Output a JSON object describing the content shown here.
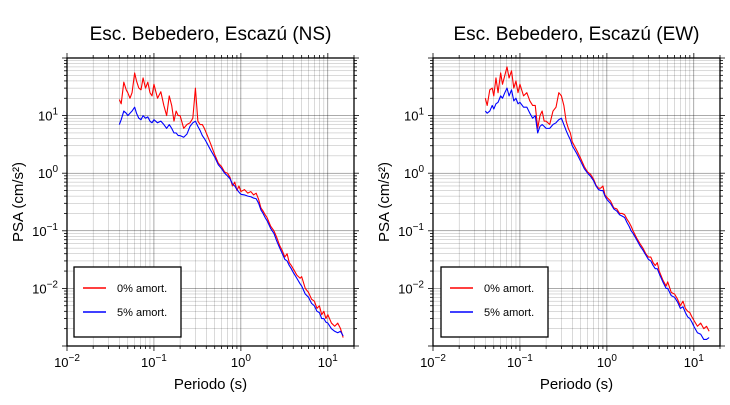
{
  "chart_data": [
    {
      "type": "line",
      "title": "Esc. Bebedero, Escazú (NS)",
      "xlabel": "Periodo (s)",
      "ylabel": "PSA (cm/s²)",
      "xscale": "log",
      "yscale": "log",
      "xlim": [
        0.01,
        20
      ],
      "ylim": [
        0.001,
        100
      ],
      "grid": true,
      "legend_position": "bottom-left",
      "xticks": [
        {
          "value": 0.01,
          "base": "10",
          "exp": "−2"
        },
        {
          "value": 0.1,
          "base": "10",
          "exp": "−1"
        },
        {
          "value": 1,
          "base": "10",
          "exp": "0"
        },
        {
          "value": 10,
          "base": "10",
          "exp": "1"
        }
      ],
      "yticks": [
        {
          "value": 0.01,
          "base": "10",
          "exp": "−2"
        },
        {
          "value": 0.1,
          "base": "10",
          "exp": "−1"
        },
        {
          "value": 1,
          "base": "10",
          "exp": "0"
        },
        {
          "value": 10,
          "base": "10",
          "exp": "1"
        }
      ],
      "series": [
        {
          "name": "0% amort.",
          "color": "#ff0000",
          "x": [
            0.04,
            0.042,
            0.045,
            0.048,
            0.05,
            0.053,
            0.056,
            0.06,
            0.063,
            0.067,
            0.071,
            0.075,
            0.08,
            0.085,
            0.09,
            0.095,
            0.1,
            0.11,
            0.12,
            0.13,
            0.14,
            0.15,
            0.16,
            0.17,
            0.18,
            0.19,
            0.2,
            0.22,
            0.24,
            0.26,
            0.28,
            0.3,
            0.32,
            0.34,
            0.36,
            0.38,
            0.4,
            0.45,
            0.5,
            0.55,
            0.6,
            0.65,
            0.7,
            0.75,
            0.8,
            0.85,
            0.9,
            0.95,
            1.0,
            1.1,
            1.2,
            1.3,
            1.4,
            1.5,
            1.6,
            1.7,
            1.8,
            1.9,
            2.0,
            2.2,
            2.4,
            2.6,
            2.8,
            3.0,
            3.2,
            3.4,
            3.6,
            3.8,
            4.0,
            4.4,
            4.8,
            5.0,
            5.5,
            6.0,
            6.5,
            7.0,
            7.5,
            8.0,
            8.5,
            9.0,
            9.5,
            10.0,
            11.0,
            12.0,
            13.0,
            14.0,
            15.0
          ],
          "y": [
            19,
            16,
            38,
            28,
            25,
            20,
            25,
            55,
            40,
            30,
            28,
            45,
            30,
            38,
            25,
            22,
            35,
            20,
            26,
            15,
            10,
            22,
            15,
            8,
            12,
            10,
            10,
            6,
            7,
            7.5,
            9,
            30,
            8,
            7,
            7,
            6,
            5,
            3.2,
            2.1,
            1.5,
            1.3,
            1.05,
            1.0,
            0.85,
            0.6,
            0.7,
            0.5,
            0.6,
            0.48,
            0.52,
            0.45,
            0.48,
            0.42,
            0.45,
            0.35,
            0.25,
            0.22,
            0.19,
            0.17,
            0.12,
            0.1,
            0.075,
            0.055,
            0.045,
            0.035,
            0.04,
            0.028,
            0.025,
            0.022,
            0.017,
            0.015,
            0.016,
            0.01,
            0.0085,
            0.0065,
            0.006,
            0.0045,
            0.005,
            0.0035,
            0.004,
            0.003,
            0.0035,
            0.0025,
            0.0022,
            0.0025,
            0.002,
            0.0014
          ]
        },
        {
          "name": "5% amort.",
          "color": "#0000ff",
          "x": [
            0.04,
            0.042,
            0.045,
            0.048,
            0.05,
            0.053,
            0.056,
            0.06,
            0.063,
            0.067,
            0.071,
            0.075,
            0.08,
            0.085,
            0.09,
            0.095,
            0.1,
            0.11,
            0.12,
            0.13,
            0.14,
            0.15,
            0.16,
            0.17,
            0.18,
            0.19,
            0.2,
            0.22,
            0.24,
            0.26,
            0.28,
            0.3,
            0.32,
            0.34,
            0.36,
            0.38,
            0.4,
            0.45,
            0.5,
            0.55,
            0.6,
            0.65,
            0.7,
            0.75,
            0.8,
            0.85,
            0.9,
            0.95,
            1.0,
            1.1,
            1.2,
            1.3,
            1.4,
            1.5,
            1.6,
            1.7,
            1.8,
            1.9,
            2.0,
            2.2,
            2.4,
            2.6,
            2.8,
            3.0,
            3.2,
            3.4,
            3.6,
            3.8,
            4.0,
            4.4,
            4.8,
            5.0,
            5.5,
            6.0,
            6.5,
            7.0,
            7.5,
            8.0,
            8.5,
            9.0,
            9.5,
            10.0,
            11.0,
            12.0,
            13.0,
            14.0,
            15.0
          ],
          "y": [
            7,
            8.5,
            12,
            11,
            10,
            11,
            12,
            14,
            11,
            9,
            8.5,
            10,
            9,
            9.5,
            8,
            7.5,
            8.5,
            7.5,
            8,
            7,
            6,
            7,
            6,
            5,
            5,
            4.5,
            4.5,
            4.2,
            4.8,
            6.5,
            7.5,
            8,
            6.5,
            5.5,
            4.5,
            4,
            3.5,
            2.5,
            1.9,
            1.4,
            1.2,
            1.0,
            0.9,
            0.8,
            0.65,
            0.6,
            0.52,
            0.47,
            0.43,
            0.42,
            0.4,
            0.39,
            0.37,
            0.36,
            0.3,
            0.23,
            0.2,
            0.17,
            0.15,
            0.11,
            0.09,
            0.065,
            0.05,
            0.04,
            0.032,
            0.03,
            0.025,
            0.022,
            0.019,
            0.015,
            0.012,
            0.011,
            0.008,
            0.007,
            0.0055,
            0.005,
            0.004,
            0.0038,
            0.003,
            0.003,
            0.0026,
            0.0025,
            0.002,
            0.0018,
            0.0017,
            0.0018,
            0.0015
          ]
        }
      ]
    },
    {
      "type": "line",
      "title": "Esc. Bebedero, Escazú (EW)",
      "xlabel": "Periodo (s)",
      "ylabel": "PSA (cm/s²)",
      "xscale": "log",
      "yscale": "log",
      "xlim": [
        0.01,
        20
      ],
      "ylim": [
        0.001,
        100
      ],
      "grid": true,
      "legend_position": "bottom-left",
      "xticks": [
        {
          "value": 0.01,
          "base": "10",
          "exp": "−2"
        },
        {
          "value": 0.1,
          "base": "10",
          "exp": "−1"
        },
        {
          "value": 1,
          "base": "10",
          "exp": "0"
        },
        {
          "value": 10,
          "base": "10",
          "exp": "1"
        }
      ],
      "yticks": [
        {
          "value": 0.01,
          "base": "10",
          "exp": "−2"
        },
        {
          "value": 0.1,
          "base": "10",
          "exp": "−1"
        },
        {
          "value": 1,
          "base": "10",
          "exp": "0"
        },
        {
          "value": 10,
          "base": "10",
          "exp": "1"
        }
      ],
      "series": [
        {
          "name": "0% amort.",
          "color": "#ff0000",
          "x": [
            0.04,
            0.042,
            0.045,
            0.048,
            0.05,
            0.053,
            0.056,
            0.06,
            0.063,
            0.067,
            0.071,
            0.075,
            0.08,
            0.085,
            0.09,
            0.095,
            0.1,
            0.11,
            0.12,
            0.13,
            0.14,
            0.15,
            0.16,
            0.17,
            0.18,
            0.19,
            0.2,
            0.22,
            0.24,
            0.26,
            0.28,
            0.3,
            0.32,
            0.34,
            0.36,
            0.38,
            0.4,
            0.45,
            0.5,
            0.55,
            0.6,
            0.65,
            0.7,
            0.75,
            0.8,
            0.85,
            0.9,
            0.95,
            1.0,
            1.1,
            1.2,
            1.3,
            1.4,
            1.5,
            1.6,
            1.7,
            1.8,
            1.9,
            2.0,
            2.2,
            2.4,
            2.6,
            2.8,
            3.0,
            3.2,
            3.4,
            3.6,
            3.8,
            4.0,
            4.4,
            4.8,
            5.0,
            5.5,
            6.0,
            6.5,
            7.0,
            7.5,
            8.0,
            8.5,
            9.0,
            9.5,
            10.0,
            11.0,
            12.0,
            13.0,
            14.0,
            15.0
          ],
          "y": [
            20,
            15,
            28,
            30,
            22,
            45,
            25,
            55,
            35,
            50,
            70,
            45,
            60,
            30,
            40,
            25,
            35,
            22,
            25,
            18,
            15,
            15,
            6,
            10,
            12,
            8,
            8,
            7,
            12,
            14,
            25,
            22,
            15,
            8,
            6,
            5,
            3.5,
            2.5,
            1.8,
            1.3,
            1.05,
            0.95,
            0.8,
            0.62,
            0.55,
            0.55,
            0.6,
            0.42,
            0.38,
            0.33,
            0.25,
            0.24,
            0.2,
            0.2,
            0.19,
            0.16,
            0.14,
            0.12,
            0.1,
            0.075,
            0.06,
            0.05,
            0.04,
            0.035,
            0.035,
            0.028,
            0.025,
            0.028,
            0.02,
            0.014,
            0.011,
            0.013,
            0.0085,
            0.008,
            0.0065,
            0.005,
            0.006,
            0.0045,
            0.004,
            0.0038,
            0.0032,
            0.0028,
            0.0022,
            0.0025,
            0.002,
            0.0022,
            0.0018
          ]
        },
        {
          "name": "5% amort.",
          "color": "#0000ff",
          "x": [
            0.04,
            0.042,
            0.045,
            0.048,
            0.05,
            0.053,
            0.056,
            0.06,
            0.063,
            0.067,
            0.071,
            0.075,
            0.08,
            0.085,
            0.09,
            0.095,
            0.1,
            0.11,
            0.12,
            0.13,
            0.14,
            0.15,
            0.16,
            0.17,
            0.18,
            0.19,
            0.2,
            0.22,
            0.24,
            0.26,
            0.28,
            0.3,
            0.32,
            0.34,
            0.36,
            0.38,
            0.4,
            0.45,
            0.5,
            0.55,
            0.6,
            0.65,
            0.7,
            0.75,
            0.8,
            0.85,
            0.9,
            0.95,
            1.0,
            1.1,
            1.2,
            1.3,
            1.4,
            1.5,
            1.6,
            1.7,
            1.8,
            1.9,
            2.0,
            2.2,
            2.4,
            2.6,
            2.8,
            3.0,
            3.2,
            3.4,
            3.6,
            3.8,
            4.0,
            4.4,
            4.8,
            5.0,
            5.5,
            6.0,
            6.5,
            7.0,
            7.5,
            8.0,
            8.5,
            9.0,
            9.5,
            10.0,
            11.0,
            12.0,
            13.0,
            14.0,
            15.0
          ],
          "y": [
            12,
            11,
            12,
            15,
            13,
            16,
            17,
            22,
            20,
            25,
            30,
            22,
            28,
            18,
            20,
            16,
            17,
            14,
            14,
            11,
            9,
            10,
            5,
            6.5,
            7,
            6.5,
            6,
            6,
            7,
            7.5,
            8.5,
            9,
            7,
            5.5,
            4.5,
            3.8,
            3,
            2.2,
            1.6,
            1.2,
            1.0,
            0.88,
            0.75,
            0.6,
            0.52,
            0.5,
            0.5,
            0.4,
            0.35,
            0.3,
            0.24,
            0.22,
            0.19,
            0.18,
            0.17,
            0.14,
            0.12,
            0.1,
            0.09,
            0.07,
            0.055,
            0.046,
            0.038,
            0.032,
            0.03,
            0.025,
            0.022,
            0.022,
            0.018,
            0.013,
            0.01,
            0.01,
            0.0075,
            0.007,
            0.0058,
            0.0045,
            0.0048,
            0.0038,
            0.0032,
            0.003,
            0.0026,
            0.0022,
            0.0017,
            0.0016,
            0.0013,
            0.0013,
            0.0014
          ]
        }
      ]
    }
  ]
}
